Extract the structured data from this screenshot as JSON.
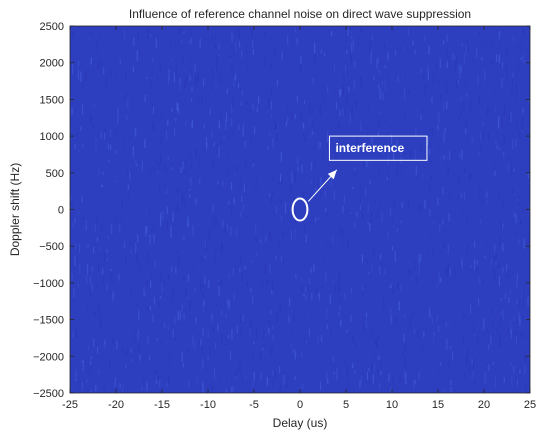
{
  "chart_data": {
    "type": "heatmap",
    "title": "Influence of reference channel noise on direct wave suppression",
    "xlabel": "Delay (us)",
    "ylabel": "Doppler shift (Hz)",
    "xlim": [
      -25,
      25
    ],
    "ylim": [
      -2500,
      2500
    ],
    "xticks": [
      -25,
      -20,
      -15,
      -10,
      -5,
      0,
      5,
      10,
      15,
      20,
      25
    ],
    "yticks": [
      -2500,
      -2000,
      -1500,
      -1000,
      -500,
      0,
      500,
      1000,
      1500,
      2000,
      2500
    ],
    "xtick_labels": [
      "-25",
      "-20",
      "-15",
      "-10",
      "-5",
      "0",
      "5",
      "10",
      "15",
      "20",
      "25"
    ],
    "ytick_labels": [
      "−2500",
      "−2000",
      "−1500",
      "−1000",
      "−500",
      "0",
      "500",
      "1000",
      "1500",
      "2000",
      "2500"
    ],
    "background_color": "#2d3fbf",
    "noise_color_dark": "#2a36b8",
    "noise_color_light": "#3f58d8",
    "grid": false,
    "highlight_ellipse": {
      "x": 0,
      "y": 0,
      "half_width": 0.8,
      "half_height": 150,
      "color": "#ffffff"
    },
    "annotation": {
      "text": "interference",
      "box": {
        "x0": 3.2,
        "x1": 13.8,
        "y0": 670,
        "y1": 1000
      },
      "arrow": {
        "from": [
          0.9,
          110
        ],
        "to": [
          4.0,
          540
        ]
      },
      "color": "#ffffff"
    }
  }
}
